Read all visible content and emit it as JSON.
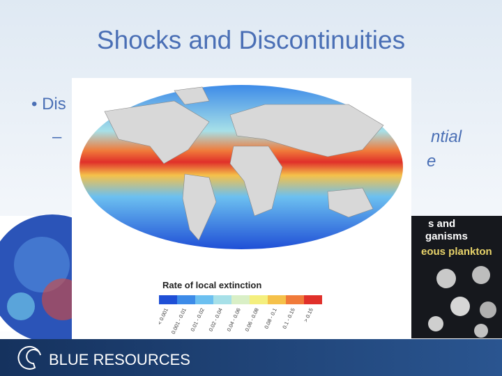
{
  "slide": {
    "title": "Shocks and Discontinuities",
    "bullet": "• Dis",
    "sub_bullet_dash": "–",
    "sub_bullet_fragments": [
      "ntial",
      "e"
    ]
  },
  "map": {
    "legend_title": "Rate of local extinction",
    "legend": [
      {
        "label": "< 0.001",
        "color": "#1f4fd6"
      },
      {
        "label": "0.001 - 0.01",
        "color": "#3d8be8"
      },
      {
        "label": "0.01 - 0.02",
        "color": "#6cc0f0"
      },
      {
        "label": "0.02 - 0.04",
        "color": "#a7e0e8"
      },
      {
        "label": "0.04 - 0.06",
        "color": "#d9efc6"
      },
      {
        "label": "0.06 - 0.08",
        "color": "#f4ef7e"
      },
      {
        "label": "0.08 - 0.1",
        "color": "#f5c14a"
      },
      {
        "label": "0.1 - 0.15",
        "color": "#f07a3a"
      },
      {
        "label": "> 0.15",
        "color": "#e0302a"
      }
    ]
  },
  "right_image": {
    "lines": [
      "s and",
      "ganisms",
      "eous plankton"
    ]
  },
  "footer": {
    "brand": "BLUE RESOURCES"
  }
}
